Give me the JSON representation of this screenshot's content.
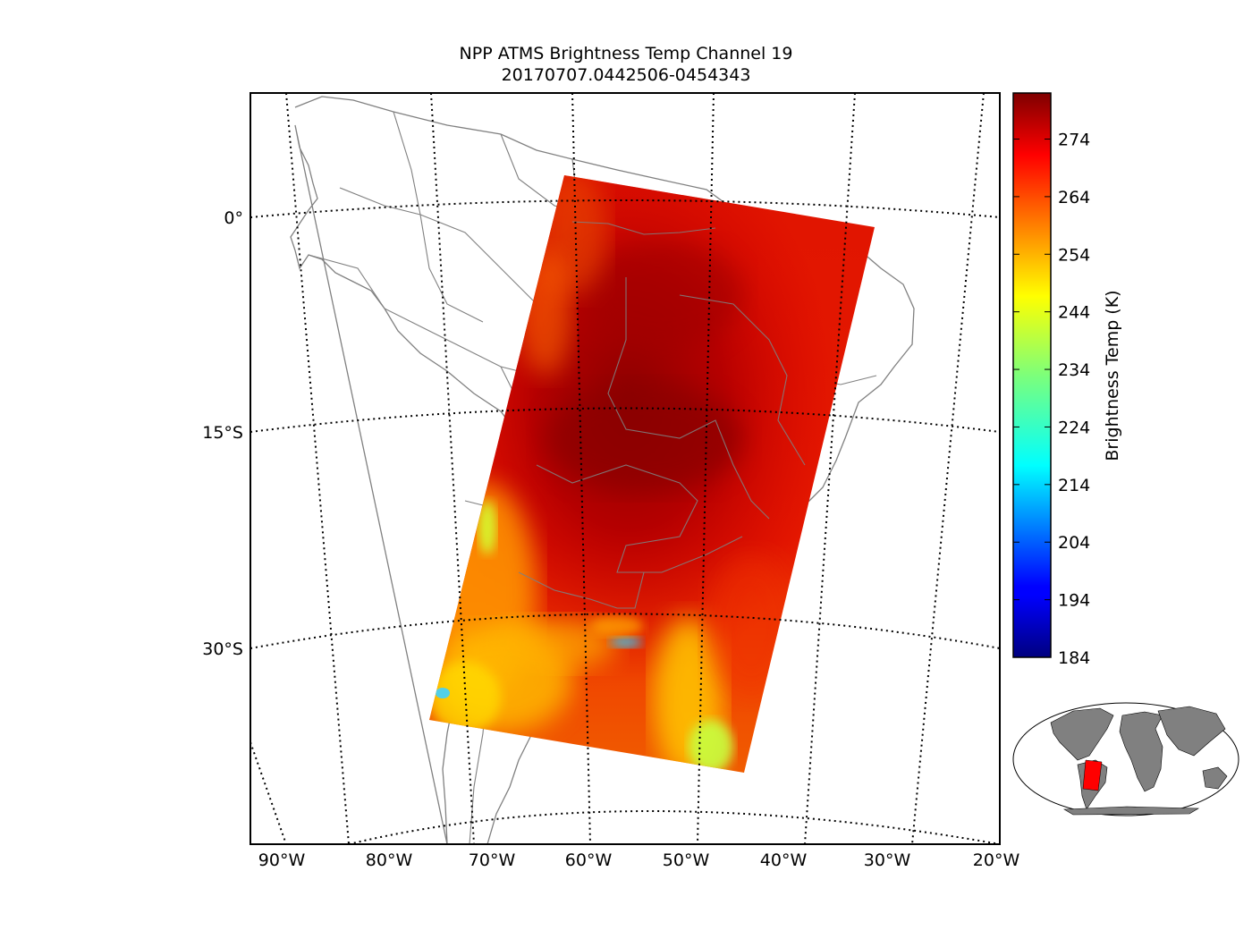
{
  "title": {
    "line1": "NPP ATMS Brightness Temp Channel 19",
    "line2": "20170707.0442506-0454343"
  },
  "map": {
    "lat_labels": [
      "0°",
      "15°S",
      "30°S"
    ],
    "lon_labels": [
      "90°W",
      "80°W",
      "70°W",
      "60°W",
      "50°W",
      "40°W",
      "30°W",
      "20°W"
    ],
    "border_color": "#808080",
    "graticule_style": "dotted"
  },
  "colorbar": {
    "label": "Brightness Temp (K)",
    "ticks": [
      "274",
      "264",
      "254",
      "244",
      "234",
      "224",
      "214",
      "204",
      "194",
      "184"
    ],
    "range": [
      184,
      282
    ],
    "colormap": "jet"
  },
  "inset": {
    "land_color": "#808080",
    "swath_color": "#ff0000"
  }
}
